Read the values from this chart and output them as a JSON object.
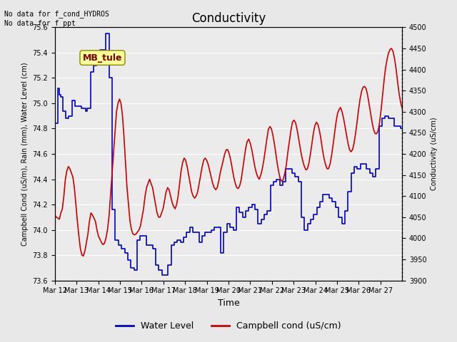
{
  "title": "Conductivity",
  "xlabel": "Time",
  "ylabel_left": "Campbell Cond (uS/m), Rain (mm), Water Level (cm)",
  "ylabel_right": "Conductivity (uS/cm)",
  "ylim_left": [
    73.6,
    75.6
  ],
  "ylim_right": [
    3900,
    4500
  ],
  "text_no_data": "No data for f_cond_HYDROS\nNo data for f_ppt",
  "box_label": "MB_tule",
  "box_color": "#ffff99",
  "box_text_color": "#800000",
  "bg_color": "#e8e8e8",
  "plot_bg_color": "#ebebeb",
  "water_level_color": "#0000cc",
  "campbell_color": "#cc0000",
  "legend_water": "Water Level",
  "legend_campbell": "Campbell cond (uS/cm)",
  "x_tick_labels": [
    "Mar 12",
    "Mar 13",
    "Mar 14",
    "Mar 15",
    "Mar 16",
    "Mar 17",
    "Mar 18",
    "Mar 19",
    "Mar 20",
    "Mar 21",
    "Mar 22",
    "Mar 23",
    "Mar 24",
    "Mar 25",
    "Mar 26",
    "Mar 27"
  ],
  "water_level_data": [
    74.84,
    74.84,
    75.12,
    75.07,
    75.05,
    74.94,
    74.94,
    74.88,
    74.88,
    74.9,
    74.9,
    75.02,
    75.02,
    74.98,
    74.98,
    74.98,
    74.98,
    74.96,
    74.96,
    74.96,
    74.94,
    74.96,
    74.96,
    75.25,
    75.25,
    75.3,
    75.3,
    75.38,
    75.38,
    75.42,
    75.42,
    75.42,
    75.42,
    75.55,
    75.55,
    75.2,
    75.2,
    74.16,
    74.16,
    73.92,
    73.92,
    73.88,
    73.88,
    73.85,
    73.85,
    73.82,
    73.82,
    73.76,
    73.76,
    73.7,
    73.7,
    73.68,
    73.68,
    73.92,
    73.92,
    73.95,
    73.95,
    73.95,
    73.95,
    73.88,
    73.88,
    73.88,
    73.88,
    73.85,
    73.85,
    73.72,
    73.72,
    73.68,
    73.68,
    73.64,
    73.64,
    73.64,
    73.64,
    73.72,
    73.72,
    73.88,
    73.88,
    73.9,
    73.9,
    73.92,
    73.92,
    73.9,
    73.9,
    73.94,
    73.94,
    73.98,
    73.98,
    74.02,
    74.02,
    73.98,
    73.98,
    73.98,
    73.98,
    73.9,
    73.9,
    73.95,
    73.95,
    73.98,
    73.98,
    73.98,
    73.98,
    74.0,
    74.0,
    74.02,
    74.02,
    74.02,
    74.02,
    73.82,
    73.82,
    73.98,
    73.98,
    74.05,
    74.05,
    74.02,
    74.02,
    74.0,
    74.0,
    74.18,
    74.18,
    74.14,
    74.14,
    74.1,
    74.1,
    74.15,
    74.15,
    74.18,
    74.18,
    74.2,
    74.2,
    74.16,
    74.16,
    74.05,
    74.05,
    74.08,
    74.08,
    74.12,
    74.12,
    74.15,
    74.15,
    74.35,
    74.35,
    74.38,
    74.38,
    74.4,
    74.4,
    74.35,
    74.35,
    74.38,
    74.38,
    74.48,
    74.48,
    74.48,
    74.48,
    74.45,
    74.45,
    74.42,
    74.42,
    74.38,
    74.38,
    74.1,
    74.1,
    74.0,
    74.0,
    74.05,
    74.05,
    74.08,
    74.08,
    74.12,
    74.12,
    74.18,
    74.18,
    74.22,
    74.22,
    74.28,
    74.28,
    74.28,
    74.28,
    74.25,
    74.25,
    74.22,
    74.22,
    74.18,
    74.18,
    74.1,
    74.1,
    74.05,
    74.05,
    74.15,
    74.15,
    74.3,
    74.3,
    74.45,
    74.45,
    74.5,
    74.5,
    74.48,
    74.48,
    74.52,
    74.52,
    74.52,
    74.52,
    74.48,
    74.48,
    74.45,
    74.45,
    74.42,
    74.42,
    74.48,
    74.48,
    74.82,
    74.82,
    74.88,
    74.88,
    74.9,
    74.9,
    74.88,
    74.88,
    74.88,
    74.88,
    74.82,
    74.82,
    74.82,
    74.82,
    74.8,
    74.8
  ],
  "campbell_data": [
    4055,
    4050,
    4048,
    4045,
    4060,
    4070,
    4100,
    4140,
    4160,
    4170,
    4165,
    4155,
    4145,
    4120,
    4080,
    4040,
    4005,
    3975,
    3960,
    3958,
    3970,
    3990,
    4010,
    4040,
    4060,
    4055,
    4048,
    4040,
    4020,
    4005,
    3998,
    3990,
    3985,
    3988,
    4000,
    4020,
    4050,
    4100,
    4150,
    4200,
    4250,
    4300,
    4320,
    4330,
    4320,
    4290,
    4240,
    4180,
    4120,
    4080,
    4040,
    4020,
    4010,
    4008,
    4010,
    4015,
    4020,
    4030,
    4050,
    4070,
    4100,
    4120,
    4130,
    4140,
    4130,
    4120,
    4100,
    4080,
    4060,
    4050,
    4050,
    4060,
    4070,
    4090,
    4110,
    4120,
    4115,
    4100,
    4085,
    4075,
    4070,
    4080,
    4100,
    4130,
    4160,
    4180,
    4190,
    4185,
    4170,
    4150,
    4130,
    4110,
    4100,
    4095,
    4100,
    4110,
    4130,
    4150,
    4170,
    4185,
    4190,
    4185,
    4175,
    4160,
    4145,
    4130,
    4120,
    4115,
    4120,
    4135,
    4155,
    4170,
    4185,
    4200,
    4210,
    4210,
    4200,
    4185,
    4165,
    4145,
    4130,
    4120,
    4118,
    4125,
    4140,
    4165,
    4190,
    4215,
    4230,
    4235,
    4225,
    4210,
    4190,
    4170,
    4155,
    4145,
    4140,
    4150,
    4165,
    4185,
    4210,
    4235,
    4258,
    4265,
    4260,
    4245,
    4225,
    4200,
    4175,
    4155,
    4140,
    4135,
    4140,
    4155,
    4175,
    4205,
    4230,
    4255,
    4275,
    4280,
    4275,
    4260,
    4240,
    4218,
    4198,
    4182,
    4170,
    4162,
    4165,
    4178,
    4200,
    4225,
    4250,
    4268,
    4275,
    4270,
    4255,
    4235,
    4210,
    4190,
    4175,
    4165,
    4165,
    4175,
    4195,
    4220,
    4248,
    4275,
    4295,
    4305,
    4310,
    4300,
    4285,
    4265,
    4245,
    4225,
    4210,
    4205,
    4210,
    4225,
    4248,
    4275,
    4305,
    4330,
    4348,
    4358,
    4360,
    4355,
    4340,
    4318,
    4295,
    4275,
    4258,
    4248,
    4248,
    4255,
    4275,
    4305,
    4340,
    4375,
    4405,
    4425,
    4440,
    4448,
    4450,
    4442,
    4425,
    4400,
    4370,
    4342,
    4322,
    4308
  ]
}
